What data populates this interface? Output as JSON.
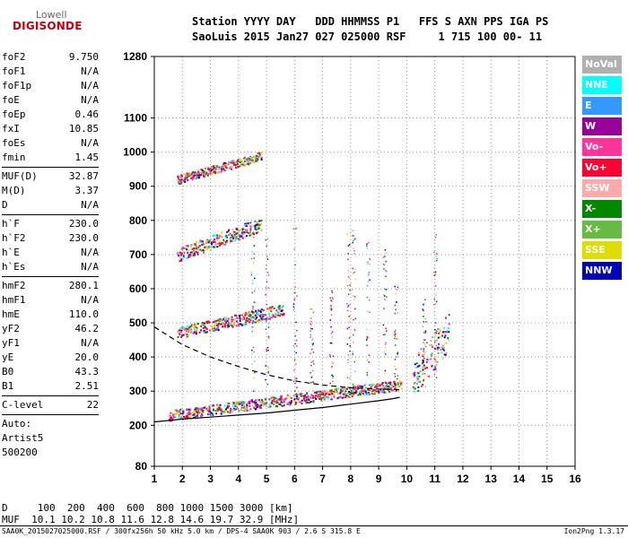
{
  "logo": {
    "line1": "Lowell",
    "line2": "DIGISONDE"
  },
  "header": {
    "line1": "Station YYYY DAY   DDD HHMMSS P1   FFS S AXN PPS IGA PS",
    "line2": "SaoLuis 2015 Jan27 027 025000 RSF     1 715 100 00- 11"
  },
  "params": {
    "group1": [
      {
        "label": "foF2",
        "value": "9.750"
      },
      {
        "label": "foF1",
        "value": "N/A"
      },
      {
        "label": "foF1p",
        "value": "N/A"
      },
      {
        "label": "foE",
        "value": "N/A"
      },
      {
        "label": "foEp",
        "value": "0.46"
      },
      {
        "label": "fxI",
        "value": "10.85"
      },
      {
        "label": "foEs",
        "value": "N/A"
      },
      {
        "label": "fmin",
        "value": "1.45"
      }
    ],
    "group2": [
      {
        "label": "MUF(D)",
        "value": "32.87"
      },
      {
        "label": "M(D)",
        "value": "3.37"
      },
      {
        "label": "D",
        "value": "N/A"
      }
    ],
    "group3": [
      {
        "label": "h`F",
        "value": "230.0"
      },
      {
        "label": "h`F2",
        "value": "230.0"
      },
      {
        "label": "h`E",
        "value": "N/A"
      },
      {
        "label": "h`Es",
        "value": "N/A"
      }
    ],
    "group4": [
      {
        "label": "hmF2",
        "value": "280.1"
      },
      {
        "label": "hmF1",
        "value": "N/A"
      },
      {
        "label": "hmE",
        "value": "110.0"
      },
      {
        "label": "yF2",
        "value": "46.2"
      },
      {
        "label": "yF1",
        "value": "N/A"
      },
      {
        "label": "yE",
        "value": "20.0"
      },
      {
        "label": "B0",
        "value": "43.3"
      },
      {
        "label": "B1",
        "value": "2.51"
      }
    ],
    "clevel": {
      "label": "C-level",
      "value": "22"
    },
    "auto_lines": [
      "Auto:",
      "Artist5",
      "500200"
    ]
  },
  "legend": [
    {
      "label": "NoVal",
      "color": "#b0b0b0"
    },
    {
      "label": "NNE",
      "color": "#00ffff"
    },
    {
      "label": "E",
      "color": "#3399ff"
    },
    {
      "label": "W",
      "color": "#990099"
    },
    {
      "label": "Vo-",
      "color": "#ff3399"
    },
    {
      "label": "Vo+",
      "color": "#ff0033"
    },
    {
      "label": "SSW",
      "color": "#ffaaaa"
    },
    {
      "label": "X-",
      "color": "#008800"
    },
    {
      "label": "X+",
      "color": "#66bb44"
    },
    {
      "label": "SSE",
      "color": "#dddd00"
    },
    {
      "label": "NNW",
      "color": "#0000bb"
    }
  ],
  "muf_table": {
    "d_line": "D     100  200  400  600  800 1000 1500 3000 [km]",
    "m_line": "MUF  10.1 10.2 10.8 11.6 12.8 14.6 19.7 32.9 [MHz]"
  },
  "footer": {
    "text": "SAA0K_2015027025000.RSF / 300fx256h 50 kHz 5.0 km / DPS-4 SAA0K 903 / 2.6 S 315.8 E",
    "version": "Ion2Png 1.3.17"
  },
  "chart_data": {
    "type": "scatter",
    "x_ticks": [
      1,
      2,
      3,
      4,
      5,
      6,
      7,
      8,
      9,
      10,
      11,
      12,
      13,
      14,
      15,
      16
    ],
    "y_ticks": [
      80,
      200,
      300,
      400,
      500,
      600,
      700,
      800,
      900,
      1000,
      1100,
      1280
    ],
    "xlim": [
      1,
      16
    ],
    "ylim": [
      80,
      1280
    ],
    "grid": "dotted",
    "legend_position": "right",
    "traces": [
      {
        "series": "O-trace (solid)",
        "x": [
          1.0,
          1.5,
          2.0,
          3.0,
          4.0,
          5.0,
          6.0,
          7.0,
          8.0,
          9.0,
          9.5,
          9.75
        ],
        "y": [
          210,
          214,
          218,
          224,
          230,
          236,
          244,
          252,
          262,
          272,
          278,
          282
        ]
      },
      {
        "series": "model (dashed)",
        "x": [
          1.0,
          1.5,
          2.0,
          3.0,
          4.0,
          5.0,
          6.0,
          7.0,
          8.0,
          9.0,
          9.5,
          9.75
        ],
        "y": [
          488,
          462,
          436,
          400,
          372,
          348,
          330,
          318,
          310,
          306,
          305,
          304
        ]
      }
    ],
    "echo_bands": [
      {
        "x_range": [
          1.5,
          9.8
        ],
        "y_start": 230,
        "y_end": 320,
        "thickness": 30
      },
      {
        "x_range": [
          1.8,
          5.6
        ],
        "y_start": 470,
        "y_end": 540,
        "thickness": 35
      },
      {
        "x_range": [
          1.8,
          4.8
        ],
        "y_start": 700,
        "y_end": 790,
        "thickness": 40
      },
      {
        "x_range": [
          1.8,
          4.8
        ],
        "y_start": 920,
        "y_end": 990,
        "thickness": 25
      },
      {
        "x_range": [
          10.2,
          11.5
        ],
        "y_start": 340,
        "y_end": 480,
        "thickness": 120
      }
    ]
  }
}
